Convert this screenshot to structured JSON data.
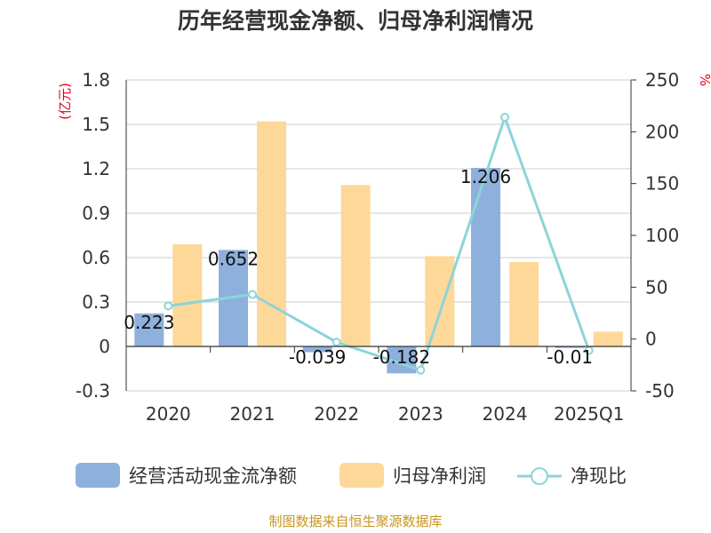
{
  "chart_data": {
    "type": "bar",
    "title": "历年经营现金净额、归母净利润情况",
    "categories": [
      "2020",
      "2021",
      "2022",
      "2023",
      "2024",
      "2025Q1"
    ],
    "series": [
      {
        "name": "经营活动现金流净额",
        "type": "bar",
        "axis": "left",
        "color": "#8eb0dc",
        "values": [
          0.223,
          0.652,
          -0.039,
          -0.182,
          1.206,
          -0.01
        ],
        "labels": [
          "0.223",
          "0.652",
          "-0.039",
          "-0.182",
          "1.206",
          "-0.01"
        ]
      },
      {
        "name": "归母净利润",
        "type": "bar",
        "axis": "left",
        "color": "#fed898",
        "values": [
          0.69,
          1.52,
          1.09,
          0.61,
          0.57,
          0.1
        ]
      },
      {
        "name": "净现比",
        "type": "line",
        "axis": "right",
        "color": "#8cd4d9",
        "values": [
          32,
          43,
          -3,
          -30,
          214,
          -11
        ]
      }
    ],
    "y_left": {
      "label": "(亿元)",
      "ylim": [
        -0.3,
        1.8
      ],
      "ticks": [
        "1.8",
        "1.5",
        "1.2",
        "0.9",
        "0.6",
        "0.3",
        "0",
        "-0.3"
      ]
    },
    "y_right": {
      "label": "%",
      "ylim": [
        -50,
        250
      ],
      "ticks": [
        "250",
        "200",
        "150",
        "100",
        "50",
        "0",
        "-50"
      ]
    },
    "grid": true,
    "legend_position": "bottom"
  },
  "source": "制图数据来自恒生聚源数据库"
}
